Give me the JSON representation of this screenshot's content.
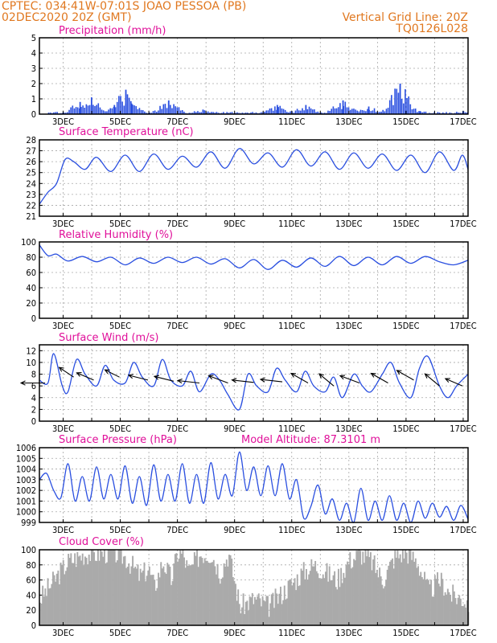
{
  "header": {
    "line1": "CPTEC:   034:41W-07:01S  JOAO PESSOA (PB)",
    "line2_left": "02DEC2020 20Z (GMT)",
    "line2_right": "Vertical Grid Line: 20Z",
    "line3_right": "TQ0126L028"
  },
  "colors": {
    "title": "#e0109a",
    "header": "#e07820",
    "series": "#2a4fe0",
    "cloud": "#aaaaaa"
  },
  "x_axis": {
    "labels": [
      "3DEC",
      "5DEC",
      "7DEC",
      "9DEC",
      "11DEC",
      "13DEC",
      "15DEC",
      "17DEC"
    ]
  },
  "chart_data": [
    {
      "id": "precip",
      "type": "bar",
      "title": "Precipitation (mm/h)",
      "ylim": [
        0,
        5
      ],
      "yticks": [
        0,
        1,
        2,
        3,
        4,
        5
      ],
      "peaks": [
        {
          "x": 3.4,
          "y": 0.8
        },
        {
          "x": 3.8,
          "y": 1.1
        },
        {
          "x": 4.6,
          "y": 0.6
        },
        {
          "x": 5.0,
          "y": 1.6
        },
        {
          "x": 5.2,
          "y": 0.7
        },
        {
          "x": 6.5,
          "y": 0.9
        },
        {
          "x": 7.7,
          "y": 0.3
        },
        {
          "x": 10.3,
          "y": 0.6
        },
        {
          "x": 11.3,
          "y": 0.6
        },
        {
          "x": 12.6,
          "y": 0.9
        },
        {
          "x": 13.5,
          "y": 0.5
        },
        {
          "x": 14.6,
          "y": 2.0
        },
        {
          "x": 15.3,
          "y": 0.2
        },
        {
          "x": 16.8,
          "y": 0.2
        }
      ]
    },
    {
      "id": "temp",
      "type": "line",
      "title": "Surface Temperature (nC)",
      "ylim": [
        21,
        28
      ],
      "yticks": [
        21,
        22,
        23,
        24,
        25,
        26,
        27,
        28
      ],
      "x": [
        2.0,
        2.3,
        2.6,
        2.9,
        3.2,
        3.6,
        4.0,
        4.5,
        5.0,
        5.5,
        6.0,
        6.5,
        7.0,
        7.5,
        8.0,
        8.5,
        9.0,
        9.5,
        10.0,
        10.5,
        11.0,
        11.5,
        12.0,
        12.5,
        13.0,
        13.5,
        14.0,
        14.5,
        15.0,
        15.5,
        16.0,
        16.5,
        16.8,
        17.0
      ],
      "y": [
        22.1,
        23.2,
        24.0,
        26.2,
        26.0,
        25.3,
        26.4,
        25.1,
        26.6,
        25.1,
        26.7,
        25.3,
        26.5,
        25.5,
        26.9,
        25.4,
        27.2,
        25.8,
        26.8,
        25.5,
        27.1,
        25.6,
        26.9,
        25.3,
        26.8,
        25.4,
        26.7,
        25.2,
        26.6,
        25.0,
        26.9,
        25.2,
        26.6,
        25.3
      ]
    },
    {
      "id": "rh",
      "type": "line",
      "title": "Relative Humidity (%)",
      "ylim": [
        0,
        100
      ],
      "yticks": [
        0,
        20,
        40,
        60,
        80,
        100
      ],
      "x": [
        2.0,
        2.3,
        2.6,
        3.0,
        3.5,
        4.0,
        4.5,
        5.0,
        5.5,
        6.0,
        6.5,
        7.0,
        7.5,
        8.0,
        8.5,
        9.0,
        9.5,
        10.0,
        10.5,
        11.0,
        11.5,
        12.0,
        12.5,
        13.0,
        13.5,
        14.0,
        14.5,
        15.0,
        15.5,
        16.0,
        16.5,
        17.0
      ],
      "y": [
        96,
        82,
        84,
        75,
        81,
        74,
        80,
        70,
        79,
        72,
        80,
        73,
        80,
        71,
        78,
        66,
        77,
        64,
        76,
        67,
        79,
        68,
        81,
        69,
        80,
        70,
        81,
        72,
        81,
        74,
        70,
        76
      ]
    },
    {
      "id": "wind",
      "type": "line",
      "title": "Surface Wind (m/s)",
      "ylim": [
        0,
        13
      ],
      "yticks": [
        0,
        2,
        4,
        6,
        8,
        10,
        12
      ],
      "x": [
        2.0,
        2.3,
        2.5,
        2.8,
        3.0,
        3.3,
        3.6,
        4.0,
        4.3,
        4.6,
        5.0,
        5.3,
        5.6,
        6.0,
        6.3,
        6.6,
        7.0,
        7.3,
        7.6,
        8.0,
        8.3,
        8.6,
        9.0,
        9.3,
        9.6,
        10.0,
        10.3,
        10.6,
        11.0,
        11.3,
        11.6,
        12.0,
        12.3,
        12.6,
        13.0,
        13.3,
        13.6,
        14.0,
        14.3,
        14.6,
        15.0,
        15.3,
        15.6,
        16.0,
        16.3,
        16.6,
        17.0
      ],
      "y": [
        7.0,
        6.5,
        11.5,
        6.0,
        5.0,
        10.5,
        8.0,
        6.0,
        9.5,
        7.0,
        6.5,
        10.0,
        7.5,
        6.0,
        10.5,
        7.0,
        6.0,
        8.5,
        5.0,
        8.0,
        7.0,
        4.5,
        2.0,
        8.0,
        6.0,
        5.0,
        9.0,
        7.0,
        5.0,
        8.5,
        6.0,
        5.0,
        7.5,
        4.0,
        8.0,
        6.0,
        5.0,
        8.0,
        10.0,
        6.5,
        4.0,
        9.0,
        11.0,
        6.0,
        4.0,
        6.0,
        8.0
      ],
      "arrows": [
        {
          "x": 2.2,
          "y": 6.5,
          "u": -1.0,
          "v": 0
        },
        {
          "x": 3.2,
          "y": 7.5,
          "u": -0.6,
          "v": 0.4
        },
        {
          "x": 3.9,
          "y": 7.0,
          "u": -0.7,
          "v": 0.3
        },
        {
          "x": 4.8,
          "y": 7.5,
          "u": -0.6,
          "v": 0.3
        },
        {
          "x": 5.8,
          "y": 7.0,
          "u": -0.8,
          "v": 0.2
        },
        {
          "x": 6.7,
          "y": 6.8,
          "u": -0.8,
          "v": 0.2
        },
        {
          "x": 7.6,
          "y": 6.5,
          "u": -0.9,
          "v": 0.1
        },
        {
          "x": 8.6,
          "y": 6.5,
          "u": -0.8,
          "v": 0.3
        },
        {
          "x": 9.5,
          "y": 6.6,
          "u": -0.9,
          "v": 0.1
        },
        {
          "x": 10.5,
          "y": 6.7,
          "u": -0.9,
          "v": 0.1
        },
        {
          "x": 11.4,
          "y": 6.5,
          "u": -0.7,
          "v": 0.4
        },
        {
          "x": 12.3,
          "y": 6.0,
          "u": -0.6,
          "v": 0.5
        },
        {
          "x": 13.2,
          "y": 6.5,
          "u": -0.8,
          "v": 0.3
        },
        {
          "x": 14.2,
          "y": 6.5,
          "u": -0.7,
          "v": 0.4
        },
        {
          "x": 15.1,
          "y": 7.0,
          "u": -0.7,
          "v": 0.4
        },
        {
          "x": 16.0,
          "y": 6.0,
          "u": -0.6,
          "v": 0.5
        },
        {
          "x": 16.8,
          "y": 6.0,
          "u": -0.7,
          "v": 0.3
        }
      ]
    },
    {
      "id": "pressure",
      "type": "line",
      "title": "Surface Pressure (hPa)",
      "subtitle": "Model Altitude: 87.3101 m",
      "ylim": [
        999,
        1006
      ],
      "yticks": [
        999,
        1000,
        1001,
        1002,
        1003,
        1004,
        1005,
        1006
      ],
      "x": [
        2.0,
        2.25,
        2.5,
        2.75,
        3.0,
        3.25,
        3.5,
        3.75,
        4.0,
        4.25,
        4.5,
        4.75,
        5.0,
        5.25,
        5.5,
        5.75,
        6.0,
        6.25,
        6.5,
        6.75,
        7.0,
        7.25,
        7.5,
        7.75,
        8.0,
        8.25,
        8.5,
        8.75,
        9.0,
        9.25,
        9.5,
        9.75,
        10.0,
        10.25,
        10.5,
        10.75,
        11.0,
        11.25,
        11.5,
        11.75,
        12.0,
        12.25,
        12.5,
        12.75,
        13.0,
        13.25,
        13.5,
        13.75,
        14.0,
        14.25,
        14.5,
        14.75,
        15.0,
        15.25,
        15.5,
        15.75,
        16.0,
        16.25,
        16.5,
        16.75,
        17.0
      ],
      "y": [
        1003.0,
        1003.6,
        1002.0,
        1001.3,
        1004.5,
        1001.0,
        1003.3,
        1001.0,
        1004.2,
        1001.2,
        1003.5,
        1001.2,
        1004.3,
        1000.8,
        1003.3,
        1000.6,
        1004.4,
        1001.0,
        1003.5,
        1001.0,
        1004.5,
        1000.8,
        1003.5,
        1000.8,
        1004.6,
        1001.2,
        1003.5,
        1001.5,
        1005.6,
        1002.0,
        1004.2,
        1001.5,
        1004.3,
        1001.5,
        1004.5,
        1001.2,
        1003.0,
        999.4,
        1000.5,
        1002.5,
        999.8,
        1001.2,
        999.2,
        1000.8,
        999.0,
        1002.2,
        999.2,
        1001.0,
        999.2,
        1001.5,
        999.2,
        1000.8,
        999.0,
        1001.0,
        999.4,
        1000.8,
        999.5,
        1000.5,
        999.2,
        1000.6,
        999.3
      ]
    },
    {
      "id": "cloud",
      "type": "area",
      "title": "Cloud Cover (%)",
      "ylim": [
        0,
        100
      ],
      "yticks": [
        0,
        20,
        40,
        60,
        80,
        100
      ],
      "x": [
        2.0,
        2.4,
        2.8,
        3.0,
        3.3,
        3.6,
        4.0,
        4.5,
        5.0,
        5.5,
        5.8,
        6.0,
        6.3,
        6.6,
        6.8,
        7.0,
        7.2,
        7.6,
        8.0,
        8.3,
        8.6,
        9.0,
        9.5,
        10.0,
        10.4,
        10.8,
        11.2,
        11.6,
        12.0,
        12.4,
        12.8,
        13.2,
        13.6,
        14.0,
        14.4,
        14.8,
        15.2,
        15.6,
        16.0,
        16.4,
        16.8,
        17.0
      ],
      "y": [
        35,
        55,
        75,
        85,
        90,
        95,
        95,
        97,
        90,
        65,
        75,
        50,
        85,
        60,
        95,
        95,
        70,
        95,
        95,
        70,
        95,
        25,
        35,
        25,
        40,
        55,
        70,
        80,
        70,
        60,
        85,
        95,
        85,
        60,
        90,
        98,
        85,
        45,
        60,
        40,
        35,
        30
      ]
    }
  ]
}
